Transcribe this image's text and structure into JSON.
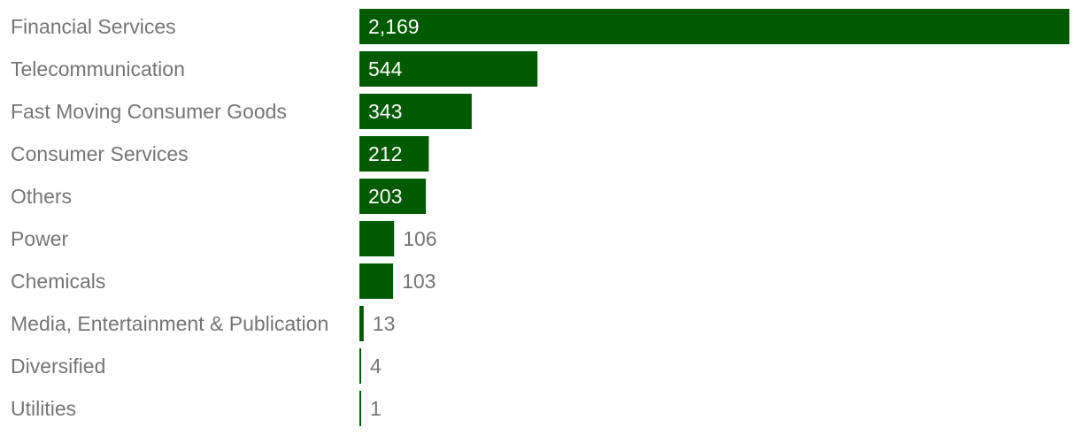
{
  "chart_data": {
    "type": "bar",
    "orientation": "horizontal",
    "categories": [
      "Financial Services",
      "Telecommunication",
      "Fast Moving Consumer Goods",
      "Consumer Services",
      "Others",
      "Power",
      "Chemicals",
      "Media, Entertainment & Publication",
      "Diversified",
      "Utilities"
    ],
    "values": [
      2169,
      544,
      343,
      212,
      203,
      106,
      103,
      13,
      4,
      1
    ],
    "value_labels": [
      "2,169",
      "544",
      "343",
      "212",
      "203",
      "106",
      "103",
      "13",
      "4",
      "1"
    ],
    "title": "",
    "xlabel": "",
    "ylabel": "",
    "xlim": [
      0,
      2169
    ],
    "grid": false,
    "legend": "none",
    "bar_color": "#005a00"
  }
}
